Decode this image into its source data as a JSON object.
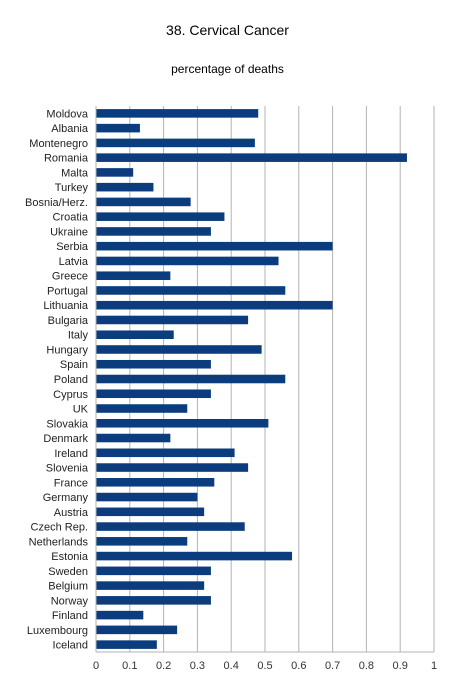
{
  "chart_data": {
    "type": "bar",
    "orientation": "horizontal",
    "title": "38. Cervical Cancer",
    "subtitle": "percentage of deaths",
    "xlabel": "",
    "ylabel": "",
    "xlim": [
      0,
      1
    ],
    "xticks": [
      "0",
      "0.1",
      "0.2",
      "0.3",
      "0.4",
      "0.5",
      "0.6",
      "0.7",
      "0.8",
      "0.9",
      "1"
    ],
    "grid": "vertical",
    "legend": "none",
    "bar_color": "#0b3d7e",
    "categories": [
      "Moldova",
      "Albania",
      "Montenegro",
      "Romania",
      "Malta",
      "Turkey",
      "Bosnia/Herz.",
      "Croatia",
      "Ukraine",
      "Serbia",
      "Latvia",
      "Greece",
      "Portugal",
      "Lithuania",
      "Bulgaria",
      "Italy",
      "Hungary",
      "Spain",
      "Poland",
      "Cyprus",
      "UK",
      "Slovakia",
      "Denmark",
      "Ireland",
      "Slovenia",
      "France",
      "Germany",
      "Austria",
      "Czech Rep.",
      "Netherlands",
      "Estonia",
      "Sweden",
      "Belgium",
      "Norway",
      "Finland",
      "Luxembourg",
      "Iceland"
    ],
    "values": [
      0.48,
      0.13,
      0.47,
      0.92,
      0.11,
      0.17,
      0.28,
      0.38,
      0.34,
      0.7,
      0.54,
      0.22,
      0.56,
      0.7,
      0.45,
      0.23,
      0.49,
      0.34,
      0.56,
      0.34,
      0.27,
      0.51,
      0.22,
      0.41,
      0.45,
      0.35,
      0.3,
      0.32,
      0.44,
      0.27,
      0.58,
      0.34,
      0.32,
      0.34,
      0.14,
      0.24,
      0.18
    ]
  }
}
